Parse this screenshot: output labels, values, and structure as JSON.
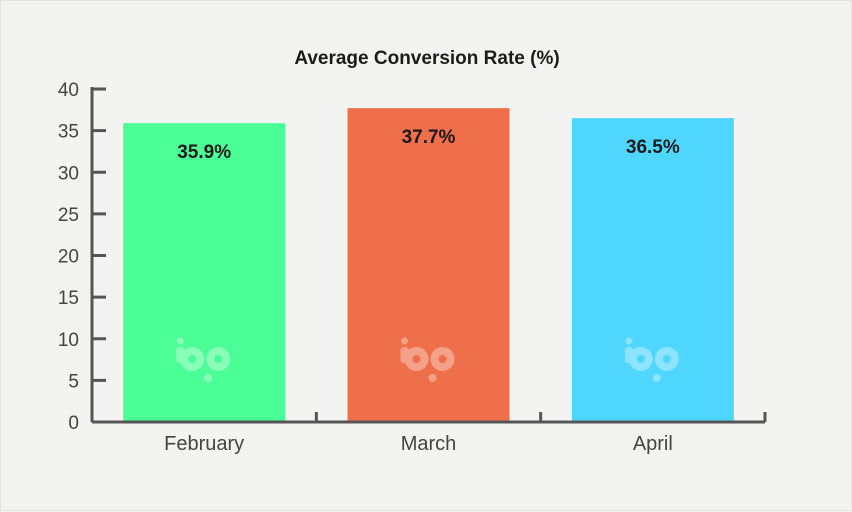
{
  "chart_data": {
    "type": "bar",
    "title": "Average Conversion Rate (%)",
    "xlabel": "",
    "ylabel": "",
    "categories": [
      "February",
      "March",
      "April"
    ],
    "values": [
      35.9,
      37.7,
      36.5
    ],
    "value_labels": [
      "35.9%",
      "37.7%",
      "36.5%"
    ],
    "colors": [
      "#4bff96",
      "#ef6f4b",
      "#4ed6ff"
    ],
    "ylim": [
      0,
      40
    ],
    "yticks": [
      0,
      5,
      10,
      15,
      20,
      25,
      30,
      35,
      40
    ],
    "grid": false,
    "legend": "none",
    "axis_color": "#555555",
    "watermark_icon": "bp-logo-icon"
  }
}
